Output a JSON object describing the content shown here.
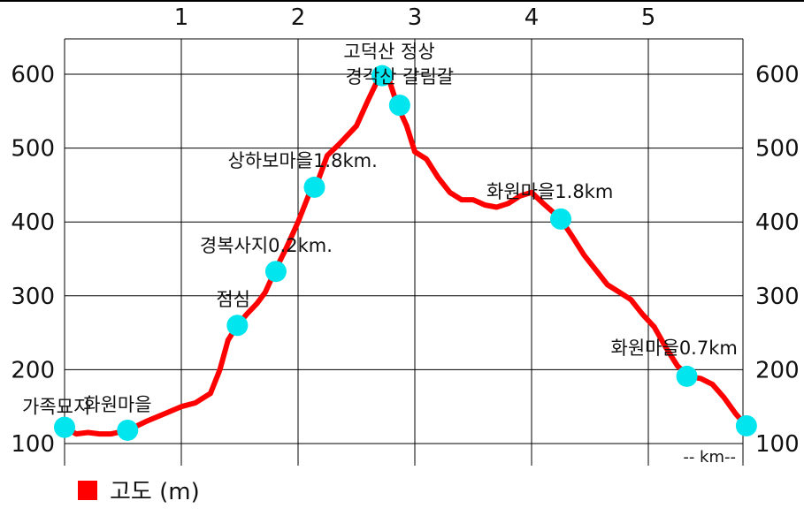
{
  "chart_data": {
    "type": "line",
    "xlim": [
      0,
      5.85
    ],
    "ylim": [
      80,
      640
    ],
    "x_ticks": [
      1,
      2,
      3,
      4,
      5
    ],
    "y_ticks": [
      100,
      200,
      300,
      400,
      500,
      600
    ],
    "grid": true,
    "x_unit_label": "-- km--",
    "series": [
      {
        "name": "고도 (m)",
        "color": "#ff0000",
        "points": [
          [
            0.0,
            122
          ],
          [
            0.1,
            113
          ],
          [
            0.2,
            115
          ],
          [
            0.3,
            113
          ],
          [
            0.4,
            113
          ],
          [
            0.54,
            118
          ],
          [
            0.7,
            130
          ],
          [
            0.85,
            140
          ],
          [
            1.0,
            150
          ],
          [
            1.12,
            155
          ],
          [
            1.25,
            168
          ],
          [
            1.33,
            200
          ],
          [
            1.4,
            240
          ],
          [
            1.48,
            260
          ],
          [
            1.56,
            275
          ],
          [
            1.65,
            290
          ],
          [
            1.72,
            305
          ],
          [
            1.8,
            333
          ],
          [
            1.9,
            365
          ],
          [
            2.0,
            400
          ],
          [
            2.1,
            440
          ],
          [
            2.15,
            447
          ],
          [
            2.25,
            490
          ],
          [
            2.35,
            505
          ],
          [
            2.5,
            530
          ],
          [
            2.6,
            565
          ],
          [
            2.7,
            598
          ],
          [
            2.78,
            592
          ],
          [
            2.85,
            558
          ],
          [
            2.93,
            530
          ],
          [
            3.0,
            495
          ],
          [
            3.1,
            485
          ],
          [
            3.2,
            460
          ],
          [
            3.3,
            440
          ],
          [
            3.4,
            430
          ],
          [
            3.5,
            430
          ],
          [
            3.6,
            423
          ],
          [
            3.7,
            420
          ],
          [
            3.8,
            425
          ],
          [
            3.9,
            435
          ],
          [
            4.0,
            440
          ],
          [
            4.1,
            425
          ],
          [
            4.25,
            404
          ],
          [
            4.35,
            380
          ],
          [
            4.45,
            355
          ],
          [
            4.55,
            335
          ],
          [
            4.65,
            315
          ],
          [
            4.75,
            305
          ],
          [
            4.85,
            295
          ],
          [
            4.95,
            275
          ],
          [
            5.05,
            258
          ],
          [
            5.15,
            230
          ],
          [
            5.25,
            205
          ],
          [
            5.35,
            191
          ],
          [
            5.45,
            188
          ],
          [
            5.55,
            180
          ],
          [
            5.65,
            162
          ],
          [
            5.75,
            140
          ],
          [
            5.84,
            124
          ]
        ]
      }
    ],
    "markers": [
      {
        "x": 0.0,
        "y": 122,
        "label": "가족묘지"
      },
      {
        "x": 0.54,
        "y": 118,
        "label": "화원마을"
      },
      {
        "x": 1.48,
        "y": 260,
        "label": "점심"
      },
      {
        "x": 1.81,
        "y": 333,
        "label": "경복사지0.2km."
      },
      {
        "x": 2.14,
        "y": 447,
        "label": "상하보마을1.8km."
      },
      {
        "x": 2.72,
        "y": 598,
        "label": "고덕산 정상"
      },
      {
        "x": 2.87,
        "y": 558,
        "label": "경각산 갈림갈"
      },
      {
        "x": 4.25,
        "y": 404,
        "label": "화원마을1.8km"
      },
      {
        "x": 5.33,
        "y": 191,
        "label": "화원마을0.7km"
      },
      {
        "x": 5.84,
        "y": 124,
        "label": ""
      }
    ],
    "colors": {
      "line": "#ff0000",
      "marker": "#00e5ee",
      "grid": "#000000"
    }
  },
  "legend": {
    "label": "고도 (m)"
  }
}
